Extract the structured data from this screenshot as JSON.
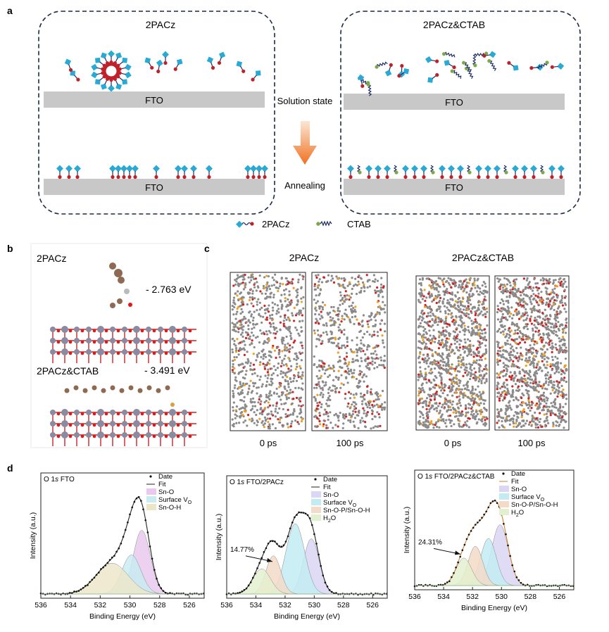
{
  "panel_letters": {
    "a": "a",
    "b": "b",
    "c": "c",
    "d": "d"
  },
  "panel_a": {
    "left_title": "2PACz",
    "right_title": "2PACz&CTAB",
    "substrate": "FTO",
    "middle_top": "Solution state",
    "middle_bottom": "Annealing",
    "legend_2pacz": "2PACz",
    "legend_ctab": "CTAB"
  },
  "panel_b": {
    "top_label": "2PACz",
    "top_energy": "- 2.763 eV",
    "bottom_label": "2PACz&CTAB",
    "bottom_energy": "- 3.491 eV"
  },
  "panel_c": {
    "left_title": "2PACz",
    "right_title": "2PACz&CTAB",
    "time_0": "0 ps",
    "time_100": "100 ps"
  },
  "colors": {
    "fto": "#c8c8c8",
    "ctab_green": "#7ba84a",
    "pacz_blue": "#29a9d6",
    "pacz_red": "#c0202a"
  },
  "chart_data": [
    {
      "type": "area",
      "title_element": "O 1s",
      "title_sample": "FTO",
      "xlabel": "Binding Energy (eV)",
      "ylabel": "Intensity (a.u.)",
      "xlim": [
        536,
        525
      ],
      "xticks": [
        536,
        534,
        532,
        530,
        528,
        526
      ],
      "legend": [
        "Date",
        "Fit",
        "Sn-O",
        "Surface VO",
        "Sn-O-H"
      ],
      "annotation": "",
      "components": [
        {
          "name": "Sn-O",
          "center": 529.2,
          "height": 0.62,
          "width": 0.85,
          "color": "#e9c9ef"
        },
        {
          "name": "Surface VO",
          "center": 529.9,
          "height": 0.38,
          "width": 0.95,
          "color": "#c9ecf2"
        },
        {
          "name": "Sn-O-H",
          "center": 531.2,
          "height": 0.3,
          "width": 1.6,
          "color": "#ece6c9"
        }
      ]
    },
    {
      "type": "area",
      "title_element": "O 1s",
      "title_sample": "FTO/2PACz",
      "xlabel": "Binding Energy (eV)",
      "ylabel": "Intensity (a.u.)",
      "xlim": [
        536,
        525
      ],
      "xticks": [
        536,
        534,
        532,
        530,
        528,
        526
      ],
      "legend": [
        "Date",
        "Fit",
        "Sn-O",
        "Surface VO",
        "Sn-O-P/Sn-O-H",
        "H2O"
      ],
      "annotation": "14.77%",
      "components": [
        {
          "name": "Sn-O",
          "center": 530.2,
          "height": 0.55,
          "width": 0.8,
          "color": "#dcd6f4"
        },
        {
          "name": "Surface VO",
          "center": 531.3,
          "height": 0.7,
          "width": 0.95,
          "color": "#c2ecf2"
        },
        {
          "name": "Sn-O-P/Sn-O-H",
          "center": 532.8,
          "height": 0.38,
          "width": 0.75,
          "color": "#f3dbc8"
        },
        {
          "name": "H2O",
          "center": 533.6,
          "height": 0.25,
          "width": 0.9,
          "color": "#e3f0cf"
        }
      ]
    },
    {
      "type": "area",
      "title_element": "O 1s",
      "title_sample": "FTO/2PACz&CTAB",
      "xlabel": "Binding Energy (eV)",
      "ylabel": "Intensity (a.u.)",
      "xlim": [
        536,
        525
      ],
      "xticks": [
        536,
        534,
        532,
        530,
        528,
        526
      ],
      "legend": [
        "Date",
        "Fit",
        "Sn-O",
        "Surface VO",
        "Sn-O-P/Sn-O-H",
        "H2O"
      ],
      "annotation": "24.31%",
      "components": [
        {
          "name": "Sn-O",
          "center": 530.1,
          "height": 0.62,
          "width": 0.85,
          "color": "#dcd6f4"
        },
        {
          "name": "Surface VO",
          "center": 530.9,
          "height": 0.48,
          "width": 0.8,
          "color": "#c2ecf2"
        },
        {
          "name": "Sn-O-P/Sn-O-H",
          "center": 531.8,
          "height": 0.4,
          "width": 0.75,
          "color": "#f3dbc8"
        },
        {
          "name": "H2O",
          "center": 532.6,
          "height": 0.28,
          "width": 0.8,
          "color": "#e3f0cf"
        }
      ]
    }
  ]
}
